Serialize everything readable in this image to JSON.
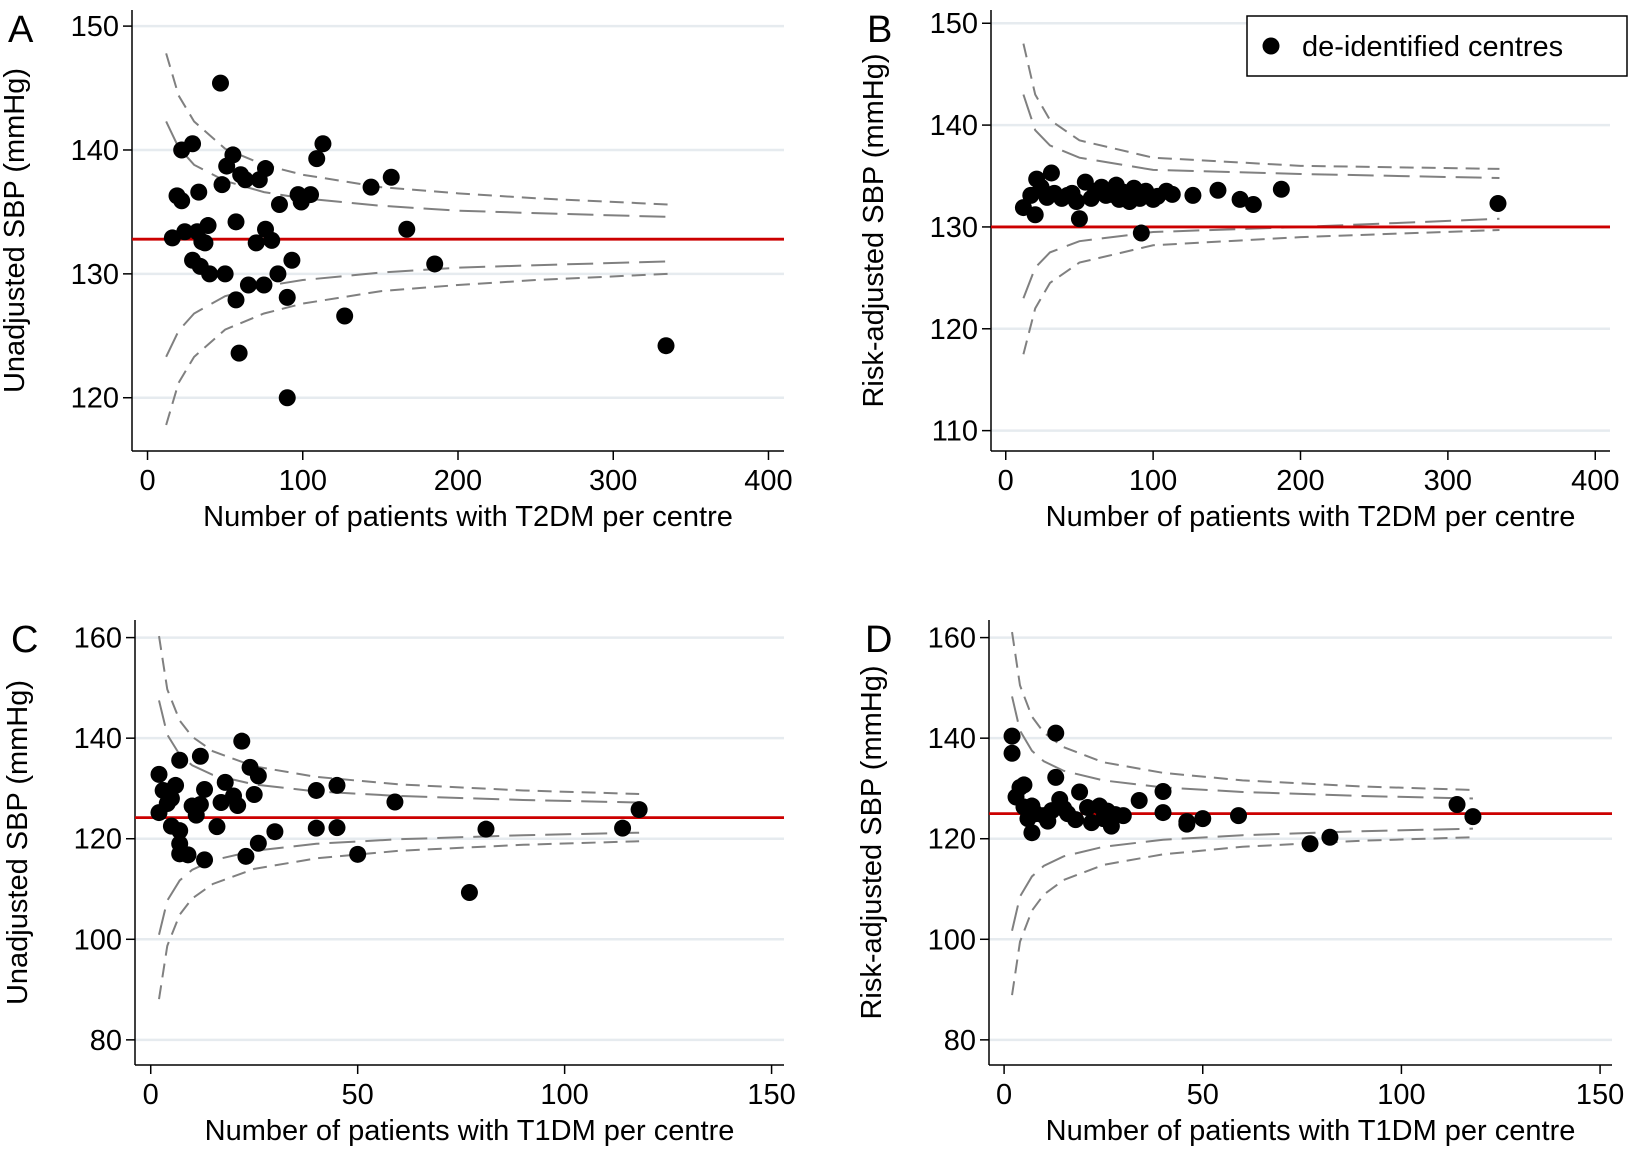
{
  "chart_data": [
    {
      "type": "scatter",
      "panel_label": "A",
      "xlabel": "Number of patients with T2DM per centre",
      "ylabel": "Unadjusted SBP (mmHg)",
      "xlim": [
        -10,
        410
      ],
      "ylim": [
        115.7,
        151.3
      ],
      "xticks": [
        0,
        100,
        200,
        300,
        400
      ],
      "yticks": [
        120,
        130,
        140,
        150
      ],
      "grid": true,
      "series": [
        {
          "color": "#000000",
          "x": [
            16,
            19,
            22,
            22,
            24,
            29,
            29,
            32,
            33,
            34,
            35,
            37,
            39,
            40,
            47,
            48,
            50,
            51,
            55,
            57,
            57,
            59,
            60,
            63,
            65,
            70,
            72,
            75,
            76,
            76,
            80,
            84,
            85,
            90,
            90,
            93,
            97,
            99,
            105,
            109,
            113,
            127,
            144,
            157,
            167,
            185,
            334
          ],
          "values": [
            132.9,
            136.3,
            140.0,
            135.9,
            133.4,
            140.5,
            131.1,
            133.4,
            136.6,
            130.6,
            132.6,
            132.5,
            133.9,
            130.0,
            145.4,
            137.2,
            130.0,
            138.7,
            139.6,
            134.2,
            127.9,
            123.6,
            138.0,
            137.6,
            129.1,
            132.5,
            137.6,
            129.1,
            133.6,
            138.5,
            132.7,
            130.0,
            135.6,
            128.1,
            120.0,
            131.1,
            136.4,
            135.8,
            136.4,
            139.3,
            140.5,
            126.6,
            137.0,
            137.8,
            133.6,
            130.8,
            124.2
          ]
        }
      ],
      "reference_line": {
        "value": 132.8,
        "color": "#cc0000"
      },
      "limits": [
        {
          "style": "short-dash",
          "color": "#808080",
          "x": [
            12,
            20,
            30,
            50,
            75,
            100,
            150,
            200,
            250,
            335
          ],
          "values": [
            147.8,
            144.4,
            142.3,
            140.1,
            138.8,
            138.0,
            137.0,
            136.5,
            136.1,
            135.6
          ]
        },
        {
          "style": "long-dash",
          "color": "#808080",
          "x": [
            12,
            20,
            30,
            50,
            75,
            100,
            150,
            200,
            250,
            335
          ],
          "values": [
            142.3,
            140.2,
            138.8,
            137.5,
            136.6,
            136.1,
            135.5,
            135.1,
            134.9,
            134.6
          ]
        },
        {
          "style": "long-dash",
          "color": "#808080",
          "x": [
            12,
            20,
            30,
            50,
            75,
            100,
            150,
            200,
            250,
            335
          ],
          "values": [
            123.3,
            125.4,
            126.8,
            128.2,
            129.0,
            129.5,
            130.1,
            130.5,
            130.7,
            131.0
          ]
        },
        {
          "style": "short-dash",
          "color": "#808080",
          "x": [
            12,
            20,
            30,
            50,
            75,
            100,
            150,
            200,
            250,
            335
          ],
          "values": [
            117.8,
            121.2,
            123.3,
            125.5,
            126.8,
            127.6,
            128.6,
            129.1,
            129.5,
            130.0
          ]
        }
      ]
    },
    {
      "type": "scatter",
      "panel_label": "B",
      "xlabel": "Number of patients with T2DM per centre",
      "ylabel": "Risk-adjusted SBP (mmHg)",
      "xlim": [
        -10,
        410
      ],
      "ylim": [
        108,
        151.3
      ],
      "xticks": [
        0,
        100,
        200,
        300,
        400
      ],
      "yticks": [
        110,
        120,
        130,
        140,
        150
      ],
      "grid": true,
      "legend": "upper right",
      "series": [
        {
          "name": "de-identified centres",
          "color": "#000000",
          "x": [
            12,
            17,
            20,
            21,
            24,
            28,
            31,
            33,
            38,
            42,
            45,
            48,
            50,
            54,
            58,
            61,
            65,
            68,
            72,
            75,
            77,
            80,
            84,
            87,
            91,
            92,
            95,
            100,
            103,
            109,
            113,
            127,
            144,
            159,
            168,
            187,
            334
          ],
          "values": [
            131.9,
            133.1,
            131.2,
            134.7,
            133.9,
            132.9,
            135.3,
            133.3,
            132.8,
            133.1,
            133.3,
            132.5,
            130.8,
            134.4,
            132.8,
            133.5,
            133.9,
            133.1,
            133.2,
            134.1,
            132.7,
            133.4,
            132.5,
            133.8,
            132.8,
            129.4,
            133.5,
            132.7,
            133.0,
            133.5,
            133.2,
            133.1,
            133.6,
            132.7,
            132.2,
            133.7,
            132.3
          ]
        }
      ],
      "reference_line": {
        "value": 130,
        "color": "#cc0000"
      },
      "limits": [
        {
          "style": "short-dash",
          "color": "#808080",
          "x": [
            12,
            20,
            30,
            50,
            100,
            200,
            335
          ],
          "values": [
            148,
            143,
            140.5,
            138.5,
            136.8,
            136,
            135.7
          ]
        },
        {
          "style": "long-dash",
          "color": "#808080",
          "x": [
            12,
            20,
            30,
            50,
            100,
            200,
            335
          ],
          "values": [
            143,
            139.5,
            138,
            136.8,
            135.6,
            135.2,
            134.8
          ]
        },
        {
          "style": "long-dash",
          "color": "#808080",
          "x": [
            12,
            20,
            30,
            50,
            100,
            200,
            335
          ],
          "values": [
            123,
            126,
            127.5,
            128.6,
            129.5,
            130,
            130.8
          ]
        },
        {
          "style": "short-dash",
          "color": "#808080",
          "x": [
            12,
            20,
            30,
            50,
            100,
            200,
            335
          ],
          "values": [
            117.5,
            122,
            124.5,
            126.5,
            128.2,
            129,
            129.7
          ]
        }
      ]
    },
    {
      "type": "scatter",
      "panel_label": "C",
      "xlabel": "Number of patients with T1DM per centre",
      "ylabel": "Unadjusted SBP (mmHg)",
      "xlim": [
        -3.8,
        153
      ],
      "ylim": [
        75,
        163.5
      ],
      "xticks": [
        0,
        50,
        100,
        150
      ],
      "yticks": [
        80,
        100,
        120,
        140,
        160
      ],
      "grid": true,
      "series": [
        {
          "color": "#000000",
          "x": [
            2,
            2,
            3,
            4,
            5,
            5,
            6,
            7,
            7,
            7,
            7,
            9,
            10,
            11,
            12,
            12,
            13,
            13,
            16,
            17,
            18,
            20,
            21,
            22,
            23,
            24,
            25,
            26,
            26,
            30,
            40,
            40,
            45,
            45,
            50,
            59,
            77,
            81,
            114,
            118
          ],
          "values": [
            132.8,
            125.2,
            129.6,
            127.0,
            122.5,
            128.0,
            130.6,
            135.6,
            121.6,
            119.0,
            117.0,
            116.8,
            126.5,
            124.7,
            136.4,
            126.8,
            129.8,
            115.8,
            122.4,
            127.2,
            131.2,
            128.5,
            126.6,
            139.4,
            116.5,
            134.2,
            128.8,
            132.5,
            119.1,
            121.4,
            129.6,
            122.1,
            130.6,
            122.2,
            116.9,
            127.3,
            109.3,
            121.9,
            122.1,
            125.8
          ]
        }
      ],
      "reference_line": {
        "value": 124.2,
        "color": "#cc0000"
      },
      "limits": [
        {
          "style": "short-dash",
          "color": "#808080",
          "x": [
            2,
            4,
            7,
            10,
            15,
            25,
            40,
            60,
            90,
            118
          ],
          "values": [
            160.3,
            149.7,
            143.5,
            140.3,
            137.4,
            134.4,
            132.3,
            130.8,
            129.6,
            128.9
          ]
        },
        {
          "style": "long-dash",
          "color": "#808080",
          "x": [
            2,
            4,
            7,
            10,
            15,
            25,
            40,
            60,
            90,
            118
          ],
          "values": [
            147.5,
            140.7,
            136.7,
            134.6,
            132.7,
            130.8,
            129.4,
            128.5,
            127.7,
            127.2
          ]
        },
        {
          "style": "long-dash",
          "color": "#808080",
          "x": [
            2,
            4,
            7,
            10,
            15,
            25,
            40,
            60,
            90,
            118
          ],
          "values": [
            100.9,
            107.7,
            111.7,
            113.8,
            115.7,
            117.6,
            119.0,
            119.9,
            120.7,
            121.2
          ]
        },
        {
          "style": "short-dash",
          "color": "#808080",
          "x": [
            2,
            4,
            7,
            10,
            15,
            25,
            40,
            60,
            90,
            118
          ],
          "values": [
            88.1,
            98.7,
            104.9,
            108.1,
            111.0,
            114.0,
            116.1,
            117.6,
            118.8,
            119.5
          ]
        }
      ]
    },
    {
      "type": "scatter",
      "panel_label": "D",
      "xlabel": "Number of patients with T1DM per centre",
      "ylabel": "Risk-adjusted SBP (mmHg)",
      "xlim": [
        -3.8,
        153
      ],
      "ylim": [
        75,
        163.5
      ],
      "xticks": [
        0,
        50,
        100,
        150
      ],
      "yticks": [
        80,
        100,
        120,
        140,
        160
      ],
      "grid": true,
      "series": [
        {
          "color": "#000000",
          "x": [
            2,
            2,
            3,
            4,
            5,
            5,
            6,
            7,
            7,
            8,
            10,
            11,
            12,
            13,
            13,
            14,
            15,
            16,
            18,
            19,
            21,
            22,
            24,
            25,
            26,
            27,
            28,
            30,
            34,
            40,
            40,
            46,
            46,
            50,
            59,
            77,
            82,
            114,
            118
          ],
          "values": [
            140.4,
            137.0,
            128.3,
            130.2,
            130.7,
            126.3,
            124.0,
            121.2,
            126.5,
            125.0,
            124.6,
            123.5,
            125.6,
            141.0,
            132.2,
            127.8,
            126.0,
            125.0,
            123.8,
            129.3,
            126.2,
            123.2,
            126.5,
            124.0,
            125.5,
            122.5,
            124.8,
            124.6,
            127.6,
            129.4,
            125.2,
            123.4,
            122.9,
            124.0,
            124.6,
            119.0,
            120.3,
            126.8,
            124.4
          ]
        }
      ],
      "reference_line": {
        "value": 125,
        "color": "#cc0000"
      },
      "limits": [
        {
          "style": "short-dash",
          "color": "#808080",
          "x": [
            2,
            4,
            7,
            10,
            15,
            25,
            40,
            60,
            90,
            118
          ],
          "values": [
            161.1,
            150.5,
            144.3,
            141.1,
            138.2,
            135.2,
            133.1,
            131.6,
            130.4,
            129.7
          ]
        },
        {
          "style": "long-dash",
          "color": "#808080",
          "x": [
            2,
            4,
            7,
            10,
            15,
            25,
            40,
            60,
            90,
            118
          ],
          "values": [
            148.3,
            141.5,
            137.5,
            135.4,
            133.5,
            131.6,
            130.2,
            129.3,
            128.5,
            128.0
          ]
        },
        {
          "style": "long-dash",
          "color": "#808080",
          "x": [
            2,
            4,
            7,
            10,
            15,
            25,
            40,
            60,
            90,
            118
          ],
          "values": [
            101.7,
            108.5,
            112.5,
            114.6,
            116.5,
            118.4,
            119.8,
            120.7,
            121.5,
            122.0
          ]
        },
        {
          "style": "short-dash",
          "color": "#808080",
          "x": [
            2,
            4,
            7,
            10,
            15,
            25,
            40,
            60,
            90,
            118
          ],
          "values": [
            88.9,
            99.5,
            105.7,
            108.9,
            111.8,
            114.8,
            116.9,
            118.4,
            119.6,
            120.3
          ]
        }
      ]
    }
  ]
}
